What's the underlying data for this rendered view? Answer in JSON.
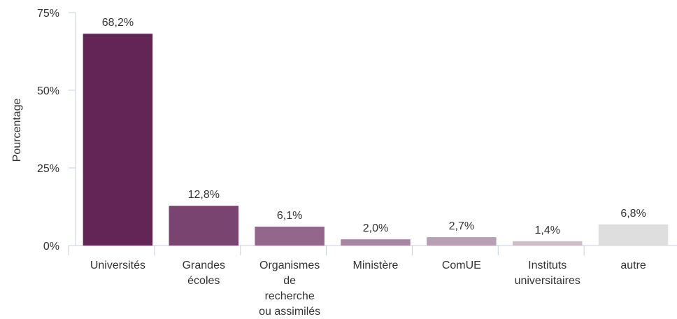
{
  "chart_data": {
    "type": "bar",
    "ylabel": "Pourcentage",
    "ylim": [
      0,
      75
    ],
    "yticks": [
      {
        "value": 0,
        "label": "0%"
      },
      {
        "value": 25,
        "label": "25%"
      },
      {
        "value": 50,
        "label": "50%"
      },
      {
        "value": 75,
        "label": "75%"
      }
    ],
    "grid": false,
    "bars": [
      {
        "category": [
          "Universités"
        ],
        "value": 68.2,
        "label": "68,2%",
        "color": "#632456"
      },
      {
        "category": [
          "Grandes",
          "écoles"
        ],
        "value": 12.8,
        "label": "12,8%",
        "color": "#7a4471"
      },
      {
        "category": [
          "Organismes",
          "de",
          "recherche",
          "ou assimilés"
        ],
        "value": 6.1,
        "label": "6,1%",
        "color": "#93668c"
      },
      {
        "category": [
          "Ministère"
        ],
        "value": 2.0,
        "label": "2,0%",
        "color": "#a585a0"
      },
      {
        "category": [
          "ComUE"
        ],
        "value": 2.7,
        "label": "2,7%",
        "color": "#b99fb4"
      },
      {
        "category": [
          "Instituts",
          "universitaires"
        ],
        "value": 1.4,
        "label": "1,4%",
        "color": "#cdbec9"
      },
      {
        "category": [
          "autre"
        ],
        "value": 6.8,
        "label": "6,8%",
        "color": "#dedede"
      }
    ]
  }
}
